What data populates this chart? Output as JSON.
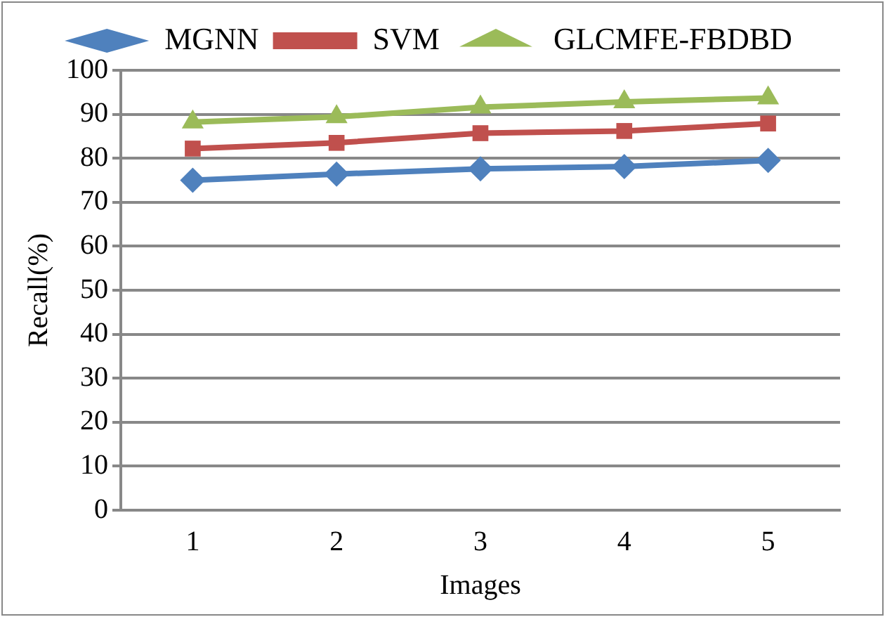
{
  "chart_data": {
    "type": "line",
    "xlabel": "Images",
    "ylabel": "Recall(%)",
    "categories": [
      "1",
      "2",
      "3",
      "4",
      "5"
    ],
    "series": [
      {
        "name": "MGNN",
        "color": "#4f81bd",
        "marker": "diamond",
        "values": [
          75.0,
          76.4,
          77.6,
          78.1,
          79.5
        ]
      },
      {
        "name": "SVM",
        "color": "#c0504d",
        "marker": "square",
        "values": [
          82.2,
          83.5,
          85.7,
          86.2,
          87.9
        ]
      },
      {
        "name": "GLCMFE-FBDBD",
        "color": "#9bbb59",
        "marker": "triangle",
        "values": [
          88.2,
          89.4,
          91.6,
          92.8,
          93.7
        ]
      }
    ],
    "ylim": [
      0,
      100
    ],
    "yticks": [
      0,
      10,
      20,
      30,
      40,
      50,
      60,
      70,
      80,
      90,
      100
    ],
    "grid": "y",
    "legend": "top"
  }
}
